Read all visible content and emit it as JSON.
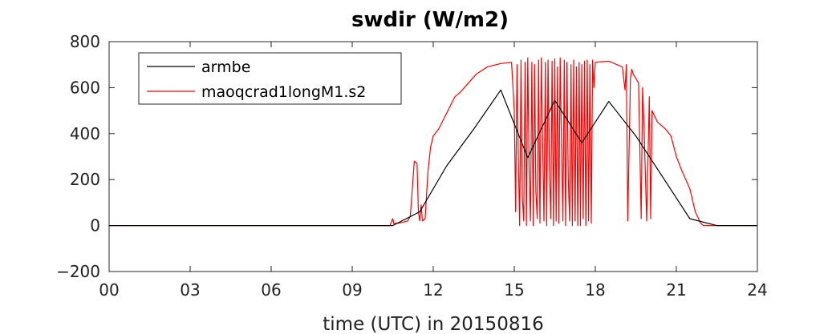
{
  "chart_data": {
    "type": "line",
    "title": "swdir  (W/m2)",
    "xlabel": "time (UTC) in 20150816",
    "ylabel": "",
    "xlim": [
      0,
      24
    ],
    "ylim": [
      -200,
      800
    ],
    "xticks": [
      0,
      3,
      6,
      9,
      12,
      15,
      18,
      21,
      24
    ],
    "xtick_labels": [
      "00",
      "03",
      "06",
      "09",
      "12",
      "15",
      "18",
      "21",
      "24"
    ],
    "yticks": [
      -200,
      0,
      200,
      400,
      600,
      800
    ],
    "ytick_labels": [
      "−200",
      "0",
      "200",
      "400",
      "600",
      "800"
    ],
    "grid": false,
    "legend_position": "top-left",
    "series": [
      {
        "name": "armbe",
        "color": "#000000",
        "x": [
          0,
          10.5,
          11.5,
          12.5,
          13.5,
          14.5,
          15.5,
          16.5,
          17.5,
          18.5,
          19.5,
          20.5,
          21.5,
          22.5,
          24
        ],
        "y": [
          0,
          0,
          60,
          260,
          420,
          590,
          295,
          545,
          360,
          540,
          390,
          210,
          30,
          0,
          0
        ]
      },
      {
        "name": "maoqcrad1longM1.s2",
        "color": "#ff0000",
        "x": [
          0,
          10.4,
          10.5,
          10.55,
          10.6,
          10.7,
          10.9,
          11.05,
          11.15,
          11.3,
          11.4,
          11.45,
          11.5,
          11.55,
          11.6,
          11.7,
          11.8,
          11.9,
          12.0,
          12.2,
          12.5,
          12.8,
          13.0,
          13.3,
          13.6,
          14.0,
          14.5,
          14.9,
          15.0,
          15.05,
          15.1,
          15.15,
          15.2,
          15.25,
          15.3,
          15.35,
          15.4,
          15.45,
          15.5,
          15.55,
          15.6,
          15.65,
          15.7,
          15.75,
          15.8,
          15.85,
          15.9,
          15.95,
          16.0,
          16.05,
          16.1,
          16.15,
          16.2,
          16.25,
          16.3,
          16.35,
          16.4,
          16.45,
          16.5,
          16.55,
          16.6,
          16.65,
          16.7,
          16.75,
          16.8,
          16.85,
          16.9,
          16.95,
          17.0,
          17.05,
          17.1,
          17.15,
          17.2,
          17.25,
          17.3,
          17.35,
          17.4,
          17.45,
          17.5,
          17.55,
          17.6,
          17.65,
          17.7,
          17.75,
          17.8,
          17.85,
          17.9,
          17.95,
          18.0,
          18.5,
          19.0,
          19.1,
          19.15,
          19.2,
          19.3,
          19.35,
          19.4,
          19.6,
          19.7,
          19.75,
          19.8,
          19.9,
          20.0,
          20.05,
          20.1,
          20.3,
          20.6,
          20.8,
          21.0,
          21.2,
          21.5,
          21.7,
          21.9,
          22.0,
          22.5,
          24.0
        ],
        "y": [
          0,
          0,
          30,
          5,
          10,
          10,
          15,
          20,
          40,
          280,
          270,
          60,
          20,
          90,
          20,
          30,
          230,
          340,
          390,
          420,
          490,
          560,
          580,
          620,
          660,
          690,
          705,
          710,
          500,
          60,
          700,
          300,
          0,
          720,
          120,
          20,
          710,
          0,
          730,
          250,
          20,
          710,
          0,
          700,
          150,
          30,
          720,
          10,
          730,
          340,
          20,
          710,
          0,
          720,
          250,
          30,
          715,
          0,
          725,
          20,
          690,
          10,
          730,
          350,
          20,
          720,
          0,
          710,
          200,
          20,
          700,
          0,
          720,
          20,
          690,
          0,
          710,
          0,
          700,
          30,
          715,
          0,
          720,
          20,
          700,
          10,
          720,
          600,
          710,
          715,
          690,
          590,
          700,
          20,
          640,
          680,
          660,
          620,
          30,
          600,
          450,
          20,
          560,
          30,
          500,
          450,
          420,
          390,
          300,
          240,
          160,
          60,
          10,
          0,
          0,
          0
        ]
      }
    ]
  }
}
